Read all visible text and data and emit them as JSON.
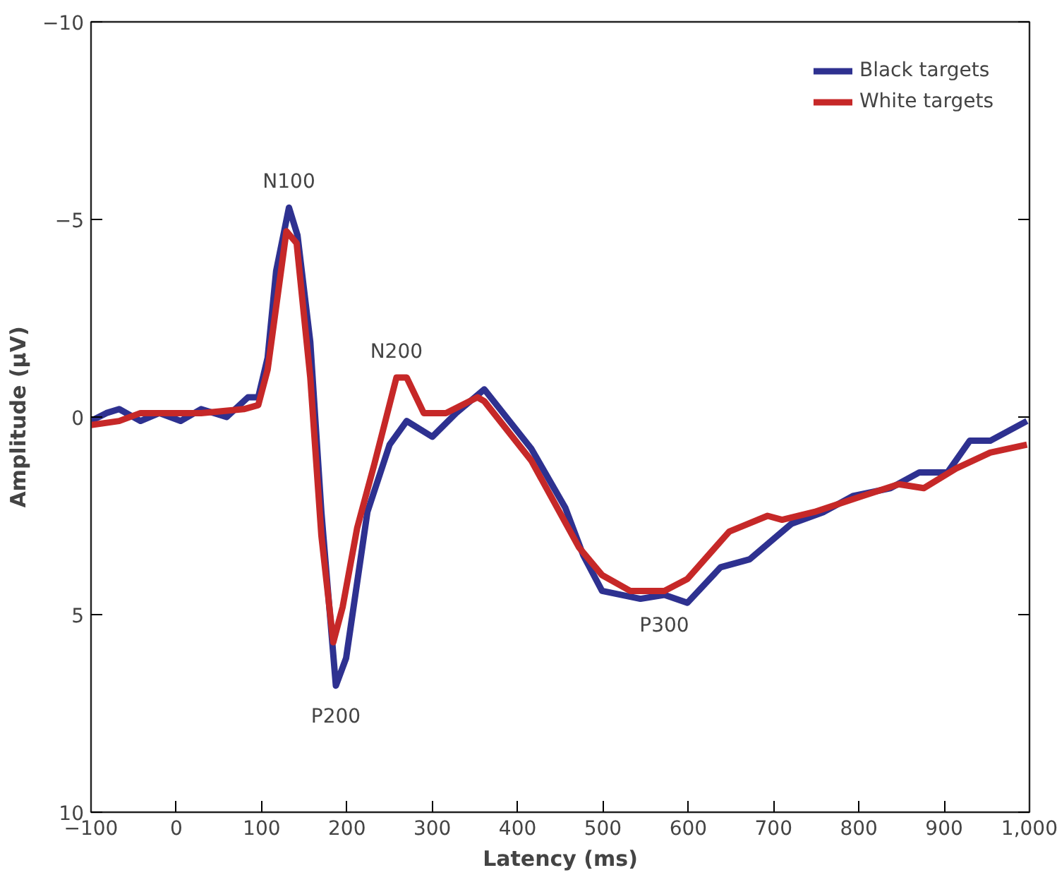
{
  "chart_data": {
    "type": "line",
    "xlabel": "Latency (ms)",
    "ylabel": "Amplitude (µV)",
    "xlim": [
      -100,
      1000
    ],
    "ylim": [
      10,
      -10
    ],
    "xticks": [
      -100,
      0,
      100,
      200,
      300,
      400,
      500,
      600,
      700,
      800,
      900,
      {
        "value": 1000,
        "label": "1,000"
      }
    ],
    "yticks": [
      {
        "value": -10,
        "label": "−10"
      },
      {
        "value": -5,
        "label": "−5"
      },
      0,
      5,
      10
    ],
    "grid": false,
    "legend": "top right",
    "line_style": "solid",
    "marker": "none",
    "series": [
      {
        "name": "Black targets",
        "color": "#2e3190",
        "x": [
          -100,
          -82,
          -67,
          -42,
          -20,
          5,
          29,
          59,
          84,
          96,
          107,
          117,
          132,
          142,
          157,
          170,
          187,
          199,
          224,
          250,
          270,
          300,
          328,
          361,
          416,
          456,
          477,
          499,
          544,
          572,
          599,
          638,
          672,
          721,
          759,
          793,
          837,
          871,
          904,
          930,
          954,
          997
        ],
        "values": [
          0.1,
          -0.1,
          -0.2,
          0.1,
          -0.1,
          0.1,
          -0.2,
          0,
          -0.5,
          -0.5,
          -1.5,
          -3.7,
          -5.3,
          -4.6,
          -1.9,
          2.4,
          6.8,
          6.1,
          2.4,
          0.7,
          0.1,
          0.5,
          -0.1,
          -0.7,
          0.8,
          2.3,
          3.5,
          4.4,
          4.6,
          4.5,
          4.7,
          3.8,
          3.6,
          2.7,
          2.4,
          2.0,
          1.8,
          1.4,
          1.4,
          0.6,
          0.6,
          0.1
        ]
      },
      {
        "name": "White targets",
        "color": "#c62828",
        "x": [
          -100,
          -67,
          -42,
          29,
          79,
          96,
          107,
          129,
          141,
          157,
          170,
          184,
          195,
          212,
          232,
          258,
          270,
          290,
          316,
          353,
          361,
          416,
          472,
          499,
          532,
          572,
          599,
          648,
          693,
          710,
          748,
          804,
          847,
          876,
          914,
          954,
          997
        ],
        "values": [
          0.2,
          0.1,
          -0.1,
          -0.1,
          -0.2,
          -0.3,
          -1.2,
          -4.7,
          -4.4,
          -1.0,
          3.0,
          5.7,
          4.8,
          2.8,
          1.2,
          -1.0,
          -1.0,
          -0.1,
          -0.1,
          -0.5,
          -0.4,
          1.1,
          3.3,
          4.0,
          4.4,
          4.4,
          4.1,
          2.9,
          2.5,
          2.6,
          2.4,
          2.0,
          1.7,
          1.8,
          1.3,
          0.9,
          0.7
        ]
      }
    ],
    "annotations": [
      {
        "text": "N100",
        "x": 132,
        "y": -5.3
      },
      {
        "text": "N200",
        "x": 258,
        "y": -1.0
      },
      {
        "text": "P200",
        "x": 187,
        "y": 6.8
      },
      {
        "text": "P300",
        "x": 572,
        "y": 4.5
      }
    ]
  }
}
